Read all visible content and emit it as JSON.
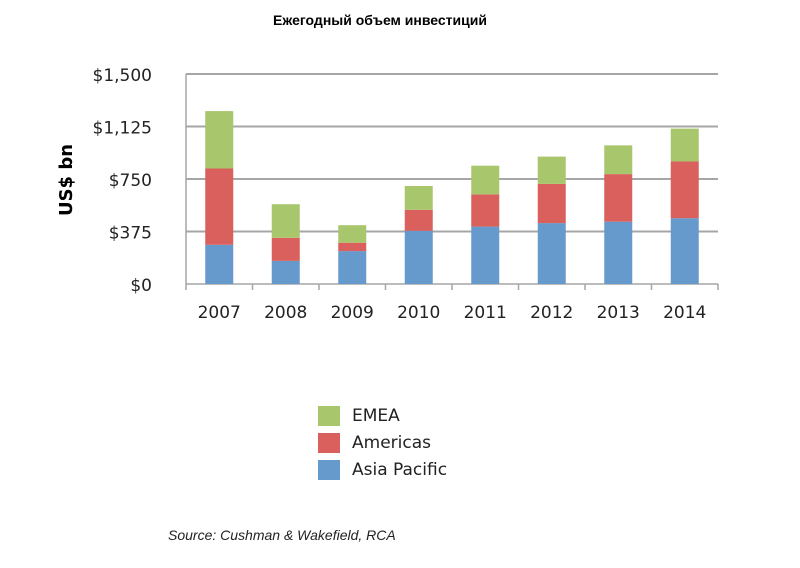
{
  "chart_data": {
    "type": "bar",
    "stacked": true,
    "title": "Ежегодный объем инвестиций",
    "ylabel": "US$ bn",
    "xlabel": "",
    "ylim": [
      0,
      1500
    ],
    "yticks": [
      "$0",
      "$375",
      "$750",
      "$1,125",
      "$1,500"
    ],
    "ytick_values": [
      0,
      375,
      750,
      1125,
      1500
    ],
    "grid": true,
    "legend_position": "bottom",
    "categories": [
      "2007",
      "2008",
      "2009",
      "2010",
      "2011",
      "2012",
      "2013",
      "2014"
    ],
    "series": [
      {
        "name": "Asia Pacific",
        "color": "#6699cc",
        "values": [
          280,
          165,
          235,
          380,
          410,
          435,
          445,
          470
        ]
      },
      {
        "name": "Americas",
        "color": "#d9605c",
        "values": [
          545,
          165,
          60,
          150,
          230,
          280,
          340,
          405
        ]
      },
      {
        "name": "EMEA",
        "color": "#a8c66c",
        "values": [
          410,
          240,
          125,
          170,
          205,
          195,
          205,
          235
        ]
      }
    ],
    "source": "Source: Cushman & Wakefield, RCA"
  },
  "legend": [
    {
      "label": "EMEA",
      "color": "#a8c66c"
    },
    {
      "label": "Americas",
      "color": "#d9605c"
    },
    {
      "label": "Asia Pacific",
      "color": "#6699cc"
    }
  ]
}
